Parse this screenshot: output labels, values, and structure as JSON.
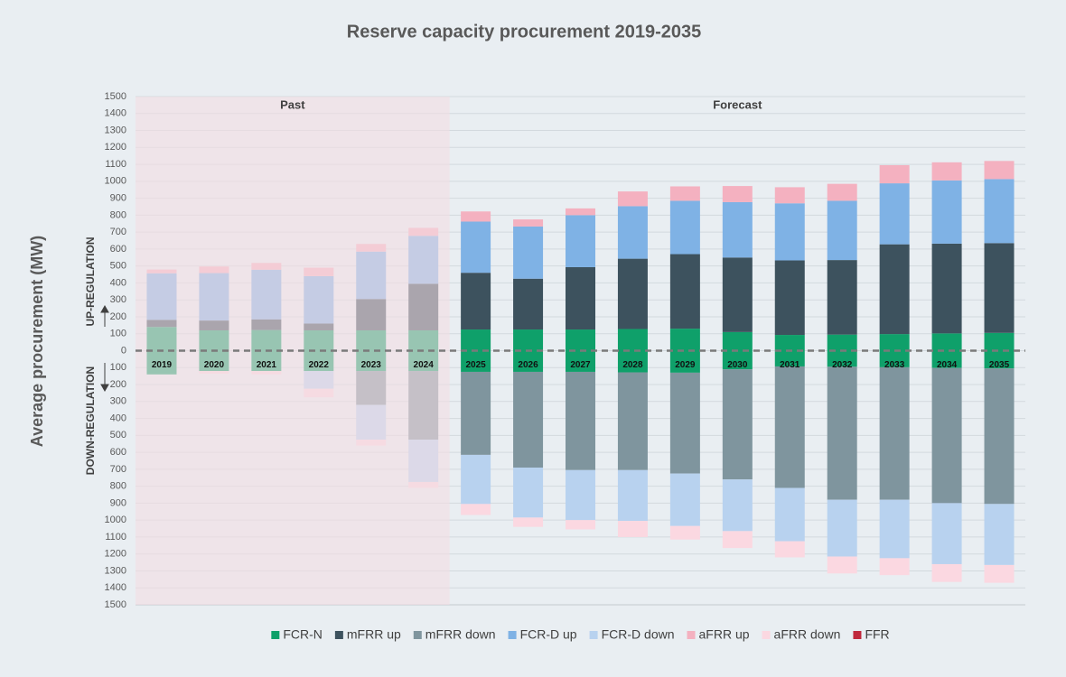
{
  "chart_data": {
    "type": "bar",
    "stacked": true,
    "title": "Reserve capacity procurement 2019-2035",
    "y_label": "Average procurement (MW)",
    "up_label": "UP-REGULATION",
    "down_label": "DOWN-REGULATION",
    "categories": [
      "2019",
      "2020",
      "2021",
      "2022",
      "2023",
      "2024",
      "2025",
      "2026",
      "2027",
      "2028",
      "2029",
      "2030",
      "2031",
      "2032",
      "2033",
      "2034",
      "2035"
    ],
    "regions": [
      {
        "label": "Past",
        "start": "2019",
        "end": "2024",
        "color": "#f3dde2",
        "opacity": 0.6
      },
      {
        "label": "Forecast",
        "start": "2025",
        "end": "2035"
      }
    ],
    "series": [
      {
        "name": "FCR-N",
        "color": "#0fa06a",
        "values": [
          140,
          120,
          122,
          120,
          120,
          120,
          125,
          125,
          125,
          128,
          130,
          110,
          93,
          95,
          98,
          102,
          105
        ],
        "down_values": [
          -140,
          -120,
          -120,
          -120,
          -120,
          -120,
          -125,
          -125,
          -125,
          -128,
          -130,
          -110,
          -93,
          -95,
          -98,
          -102,
          -105
        ]
      },
      {
        "name": "mFRR up",
        "color": "#3d525e",
        "values": [
          42,
          58,
          63,
          40,
          185,
          275,
          335,
          300,
          368,
          415,
          440,
          440,
          440,
          440,
          530,
          530,
          530
        ]
      },
      {
        "name": "mFRR down",
        "color": "#7f959e",
        "values": [
          0,
          0,
          0,
          0,
          -200,
          -405,
          -490,
          -565,
          -580,
          -577,
          -595,
          -650,
          -717,
          -785,
          -782,
          -798,
          -800
        ]
      },
      {
        "name": "FCR-D up",
        "color": "#7fb2e5",
        "values": [
          275,
          280,
          293,
          280,
          280,
          283,
          302,
          308,
          307,
          310,
          315,
          327,
          337,
          350,
          360,
          373,
          378
        ]
      },
      {
        "name": "FCR-D down",
        "color": "#b8d2ef",
        "values": [
          0,
          0,
          0,
          -105,
          -205,
          -250,
          -290,
          -295,
          -295,
          -300,
          -310,
          -305,
          -315,
          -335,
          -345,
          -360,
          -360
        ]
      },
      {
        "name": "aFRR up",
        "color": "#f4b1c0",
        "values": [
          22,
          39,
          40,
          50,
          45,
          47,
          60,
          42,
          40,
          87,
          85,
          95,
          95,
          100,
          107,
          107,
          107
        ]
      },
      {
        "name": "aFRR down",
        "color": "#fbd8e1",
        "values": [
          0,
          -15,
          -20,
          -50,
          -35,
          -35,
          -65,
          -55,
          -55,
          -95,
          -80,
          -100,
          -95,
          -100,
          -100,
          -105,
          -105
        ]
      },
      {
        "name": "FFR",
        "color": "#c0283c",
        "values": [
          0,
          0,
          0,
          0,
          0,
          0,
          0,
          0,
          0,
          0,
          0,
          0,
          0,
          0,
          0,
          0,
          0
        ]
      }
    ],
    "ylim": [
      -1500,
      1500
    ],
    "yticks": [
      {
        "value": -1500,
        "label": "1500"
      },
      {
        "value": -1400,
        "label": "1400"
      },
      {
        "value": -1300,
        "label": "1300"
      },
      {
        "value": -1200,
        "label": "1200"
      },
      {
        "value": -1100,
        "label": "1100"
      },
      {
        "value": -1000,
        "label": "1000"
      },
      {
        "value": -900,
        "label": "900"
      },
      {
        "value": -800,
        "label": "800"
      },
      {
        "value": -700,
        "label": "700"
      },
      {
        "value": -600,
        "label": "600"
      },
      {
        "value": -500,
        "label": "500"
      },
      {
        "value": -400,
        "label": "400"
      },
      {
        "value": -300,
        "label": "300"
      },
      {
        "value": -200,
        "label": "200"
      },
      {
        "value": -100,
        "label": "100"
      },
      0,
      100,
      200,
      300,
      400,
      500,
      600,
      700,
      800,
      900,
      1000,
      1100,
      1200,
      1300,
      1400,
      1500
    ],
    "grid": true
  }
}
